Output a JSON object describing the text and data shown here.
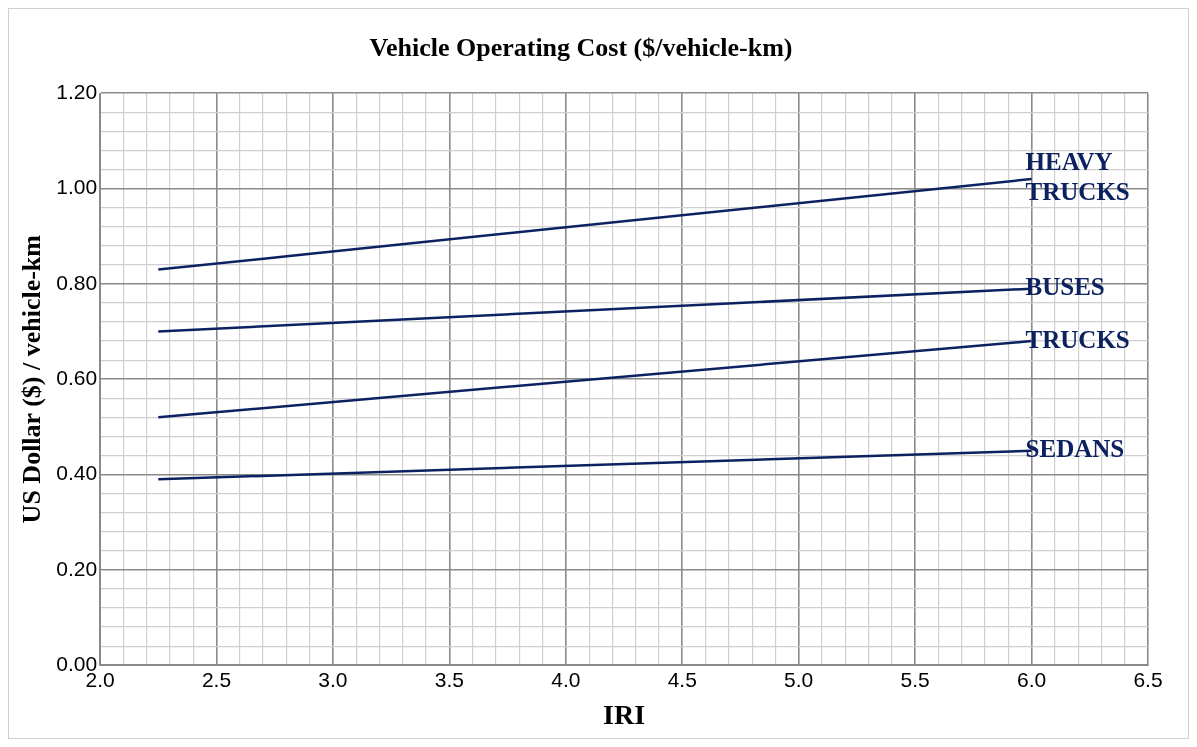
{
  "chart_data": {
    "type": "line",
    "title": "Vehicle Operating Cost ($/vehicle-km)",
    "xlabel": "IRI",
    "ylabel": "US Dollar ($) / vehicle-km",
    "x": [
      2.25,
      6.0
    ],
    "series": [
      {
        "name": "HEAVY TRUCKS",
        "color": "#0c2160",
        "values": [
          0.83,
          1.02
        ]
      },
      {
        "name": "BUSES",
        "color": "#0c2160",
        "values": [
          0.7,
          0.79
        ]
      },
      {
        "name": "TRUCKS",
        "color": "#0c2160",
        "values": [
          0.52,
          0.68
        ]
      },
      {
        "name": "SEDANS",
        "color": "#0c2160",
        "values": [
          0.39,
          0.45
        ]
      }
    ],
    "xlim": [
      2.0,
      6.5
    ],
    "xticks": [
      {
        "value": 2.0,
        "label": "2.0"
      },
      {
        "value": 2.1,
        "label": null
      },
      {
        "value": 2.2,
        "label": null
      },
      {
        "value": 2.3,
        "label": null
      },
      {
        "value": 2.4,
        "label": null
      },
      {
        "value": 2.5,
        "label": "2.5"
      },
      {
        "value": 2.6,
        "label": null
      },
      {
        "value": 2.7,
        "label": null
      },
      {
        "value": 2.8,
        "label": null
      },
      {
        "value": 2.9,
        "label": null
      },
      {
        "value": 3.0,
        "label": "3.0"
      },
      {
        "value": 3.1,
        "label": null
      },
      {
        "value": 3.2,
        "label": null
      },
      {
        "value": 3.3,
        "label": null
      },
      {
        "value": 3.4,
        "label": null
      },
      {
        "value": 3.5,
        "label": "3.5"
      },
      {
        "value": 3.6,
        "label": null
      },
      {
        "value": 3.7,
        "label": null
      },
      {
        "value": 3.8,
        "label": null
      },
      {
        "value": 3.9,
        "label": null
      },
      {
        "value": 4.0,
        "label": "4.0"
      },
      {
        "value": 4.1,
        "label": null
      },
      {
        "value": 4.2,
        "label": null
      },
      {
        "value": 4.3,
        "label": null
      },
      {
        "value": 4.4,
        "label": null
      },
      {
        "value": 4.5,
        "label": "4.5"
      },
      {
        "value": 4.6,
        "label": null
      },
      {
        "value": 4.7,
        "label": null
      },
      {
        "value": 4.8,
        "label": null
      },
      {
        "value": 4.9,
        "label": null
      },
      {
        "value": 5.0,
        "label": "5.0"
      },
      {
        "value": 5.1,
        "label": null
      },
      {
        "value": 5.2,
        "label": null
      },
      {
        "value": 5.3,
        "label": null
      },
      {
        "value": 5.4,
        "label": null
      },
      {
        "value": 5.5,
        "label": "5.5"
      },
      {
        "value": 5.6,
        "label": null
      },
      {
        "value": 5.7,
        "label": null
      },
      {
        "value": 5.8,
        "label": null
      },
      {
        "value": 5.9,
        "label": null
      },
      {
        "value": 6.0,
        "label": "6.0"
      },
      {
        "value": 6.1,
        "label": null
      },
      {
        "value": 6.2,
        "label": null
      },
      {
        "value": 6.3,
        "label": null
      },
      {
        "value": 6.4,
        "label": null
      },
      {
        "value": 6.5,
        "label": "6.5"
      }
    ],
    "ylim": [
      0,
      1.2
    ],
    "yticks": [
      {
        "value": 0,
        "label": "0.00"
      },
      {
        "value": 0.04,
        "label": null
      },
      {
        "value": 0.08,
        "label": null
      },
      {
        "value": 0.12,
        "label": null
      },
      {
        "value": 0.16,
        "label": null
      },
      {
        "value": 0.2,
        "label": "0.20"
      },
      {
        "value": 0.24,
        "label": null
      },
      {
        "value": 0.28,
        "label": null
      },
      {
        "value": 0.32,
        "label": null
      },
      {
        "value": 0.36,
        "label": null
      },
      {
        "value": 0.4,
        "label": "0.40"
      },
      {
        "value": 0.44,
        "label": null
      },
      {
        "value": 0.48,
        "label": null
      },
      {
        "value": 0.52,
        "label": null
      },
      {
        "value": 0.56,
        "label": null
      },
      {
        "value": 0.6,
        "label": "0.60"
      },
      {
        "value": 0.64,
        "label": null
      },
      {
        "value": 0.68,
        "label": null
      },
      {
        "value": 0.72,
        "label": null
      },
      {
        "value": 0.76,
        "label": null
      },
      {
        "value": 0.8,
        "label": "0.80"
      },
      {
        "value": 0.84,
        "label": null
      },
      {
        "value": 0.88,
        "label": null
      },
      {
        "value": 0.92,
        "label": null
      },
      {
        "value": 0.96,
        "label": null
      },
      {
        "value": 1.0,
        "label": "1.00"
      },
      {
        "value": 1.04,
        "label": null
      },
      {
        "value": 1.08,
        "label": null
      },
      {
        "value": 1.12,
        "label": null
      },
      {
        "value": 1.16,
        "label": null
      },
      {
        "value": 1.2,
        "label": "1.20"
      }
    ],
    "grid": true,
    "legend": false,
    "marker": "none",
    "line_style": "solid"
  }
}
